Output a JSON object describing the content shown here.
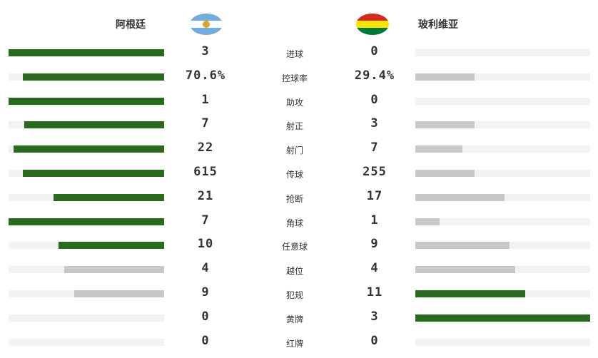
{
  "header": {
    "home_team": "阿根廷",
    "away_team": "玻利维亚",
    "home_flag_icon": "argentina-flag-icon",
    "away_flag_icon": "bolivia-flag-icon"
  },
  "colors": {
    "leader": "#2a6a1f",
    "other": "#c8c8c8",
    "track": "#f2f2f2",
    "argentina_blue": "#74acdf",
    "argentina_sun": "#d9a629",
    "bolivia_red": "#d52b1e",
    "bolivia_yellow": "#f9e300",
    "bolivia_green": "#007934"
  },
  "stats": [
    {
      "label": "进球",
      "home": "3",
      "away": "0",
      "home_fill": 1.0,
      "away_fill": 0.0,
      "leader": "home"
    },
    {
      "label": "控球率",
      "home": "70.6%",
      "away": "29.4%",
      "home_fill": 0.91,
      "away_fill": 0.34,
      "leader": "home"
    },
    {
      "label": "助攻",
      "home": "1",
      "away": "0",
      "home_fill": 1.0,
      "away_fill": 0.0,
      "leader": "home"
    },
    {
      "label": "射正",
      "home": "7",
      "away": "3",
      "home_fill": 0.9,
      "away_fill": 0.34,
      "leader": "home"
    },
    {
      "label": "射门",
      "home": "22",
      "away": "7",
      "home_fill": 0.97,
      "away_fill": 0.27,
      "leader": "home"
    },
    {
      "label": "传球",
      "home": "615",
      "away": "255",
      "home_fill": 0.91,
      "away_fill": 0.34,
      "leader": "home"
    },
    {
      "label": "抢断",
      "home": "21",
      "away": "17",
      "home_fill": 0.71,
      "away_fill": 0.51,
      "leader": "home"
    },
    {
      "label": "角球",
      "home": "7",
      "away": "1",
      "home_fill": 1.0,
      "away_fill": 0.14,
      "leader": "home"
    },
    {
      "label": "任意球",
      "home": "10",
      "away": "9",
      "home_fill": 0.68,
      "away_fill": 0.54,
      "leader": "home"
    },
    {
      "label": "越位",
      "home": "4",
      "away": "4",
      "home_fill": 0.64,
      "away_fill": 0.57,
      "leader": "none"
    },
    {
      "label": "犯规",
      "home": "9",
      "away": "11",
      "home_fill": 0.58,
      "away_fill": 0.63,
      "leader": "away"
    },
    {
      "label": "黄牌",
      "home": "0",
      "away": "3",
      "home_fill": 0.0,
      "away_fill": 1.0,
      "leader": "away"
    },
    {
      "label": "红牌",
      "home": "0",
      "away": "0",
      "home_fill": 0.0,
      "away_fill": 0.0,
      "leader": "none"
    }
  ]
}
